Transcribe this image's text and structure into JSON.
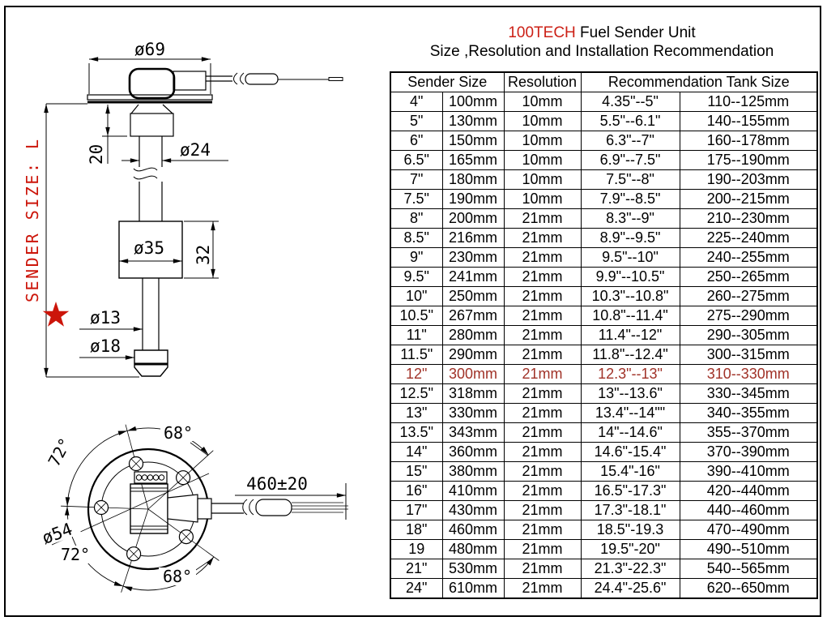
{
  "title": {
    "brand": "100TECH",
    "product": " Fuel Sender Unit",
    "subtitle": "Size ,Resolution and Installation Recommendation"
  },
  "colors": {
    "brand_red": "#cc2016",
    "highlight_red": "#a03228",
    "drawing_red": "#cc150a",
    "line_black": "#000000"
  },
  "table": {
    "headers": [
      "Sender Size",
      "Resolution",
      "Recommendation Tank Size"
    ],
    "highlight_row_index": 14,
    "rows": [
      [
        "4\"",
        "100mm",
        "10mm",
        "4.35\"--5\"",
        "110--125mm"
      ],
      [
        "5\"",
        "130mm",
        "10mm",
        "5.5\"--6.1\"",
        "140--155mm"
      ],
      [
        "6\"",
        "150mm",
        "10mm",
        "6.3\"--7\"",
        "160--178mm"
      ],
      [
        "6.5\"",
        "165mm",
        "10mm",
        "6.9\"--7.5\"",
        "175--190mm"
      ],
      [
        "7\"",
        "180mm",
        "10mm",
        "7.5\"--8\"",
        "190--203mm"
      ],
      [
        "7.5\"",
        "190mm",
        "10mm",
        "7.9\"--8.5\"",
        "200--215mm"
      ],
      [
        "8\"",
        "200mm",
        "21mm",
        "8.3\"--9\"",
        "210--230mm"
      ],
      [
        "8.5\"",
        "216mm",
        "21mm",
        "8.9\"--9.5\"",
        "225--240mm"
      ],
      [
        "9\"",
        "230mm",
        "21mm",
        "9.5\"--10\"",
        "240--255mm"
      ],
      [
        "9.5\"",
        "241mm",
        "21mm",
        "9.9\"--10.5\"",
        "250--265mm"
      ],
      [
        "10\"",
        "250mm",
        "21mm",
        "10.3\"--10.8\"",
        "260--275mm"
      ],
      [
        "10.5\"",
        "267mm",
        "21mm",
        "10.8\"--11.4\"",
        "275--290mm"
      ],
      [
        "11\"",
        "280mm",
        "21mm",
        "11.4\"--12\"",
        "290--305mm"
      ],
      [
        "11.5\"",
        "290mm",
        "21mm",
        "11.8\"--12.4\"",
        "300--315mm"
      ],
      [
        "12\"",
        "300mm",
        "21mm",
        "12.3\"--13\"",
        "310--330mm"
      ],
      [
        "12.5\"",
        "318mm",
        "21mm",
        "13\"--13.6\"",
        "330--345mm"
      ],
      [
        "13\"",
        "330mm",
        "21mm",
        "13.4\"--14\"\"",
        "340--355mm"
      ],
      [
        "13.5\"",
        "343mm",
        "21mm",
        "14\"--14.6\"",
        "355--370mm"
      ],
      [
        "14\"",
        "360mm",
        "21mm",
        "14.6\"-15.4\"",
        "370--390mm"
      ],
      [
        "15\"",
        "380mm",
        "21mm",
        "15.4\"-16\"",
        "390--410mm"
      ],
      [
        "16\"",
        "410mm",
        "21mm",
        "16.5\"-17.3\"",
        "420--440mm"
      ],
      [
        "17\"",
        "430mm",
        "21mm",
        "17.3\"-18.1\"",
        "440--460mm"
      ],
      [
        "18\"",
        "460mm",
        "21mm",
        "18.5\"-19.3",
        "470--490mm"
      ],
      [
        "19",
        "480mm",
        "21mm",
        "19.5\"-20\"",
        "490--510mm"
      ],
      [
        "21\"",
        "530mm",
        "21mm",
        "21.3\"-22.3\"",
        "540--565mm"
      ],
      [
        "24\"",
        "610mm",
        "21mm",
        "24.4\"-25.6\"",
        "620--650mm"
      ]
    ]
  },
  "drawing": {
    "side_view": {
      "flange_diameter": "ø69",
      "neck_height": "20",
      "tube_diameter": "ø24",
      "float_diameter": "ø35",
      "float_height": "32",
      "rod_diameter": "ø13",
      "end_cap_diameter": "ø18",
      "length_label": "SENDER SIZE: L"
    },
    "top_view": {
      "bolt_circle_diameter": "ø54",
      "angle_top": "68°",
      "angle_upper_left": "72°",
      "angle_lower_left": "72°",
      "angle_bottom": "68°",
      "cable_length": "460±20"
    }
  }
}
